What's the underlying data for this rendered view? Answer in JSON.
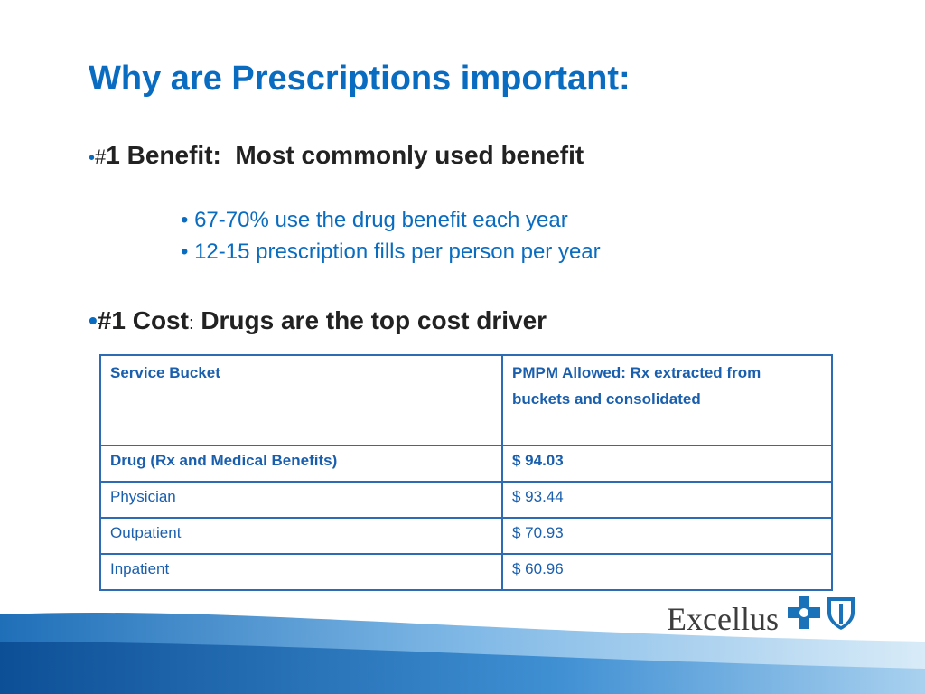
{
  "slide": {
    "title": "Why are Prescriptions important:",
    "bullets": [
      {
        "marker": "#",
        "text": "1 Benefit:  Most commonly used benefit",
        "sub_bullets": [
          "67-70% use the drug benefit each year",
          "12-15 prescription fills per person per year"
        ]
      },
      {
        "lead": "#1 Cost",
        "separator": ":",
        "text": "Drugs are the top cost driver"
      }
    ],
    "table": {
      "header": [
        "Service Bucket",
        "PMPM Allowed: Rx extracted from buckets and  consolidated"
      ],
      "rows": [
        [
          "Drug (Rx and Medical Benefits)",
          "$  94.03"
        ],
        [
          "Physician",
          "$  93.44"
        ],
        [
          "Outpatient",
          "$  70.93"
        ],
        [
          "Inpatient",
          "$  60.96"
        ]
      ]
    },
    "logo": "Excellus"
  }
}
